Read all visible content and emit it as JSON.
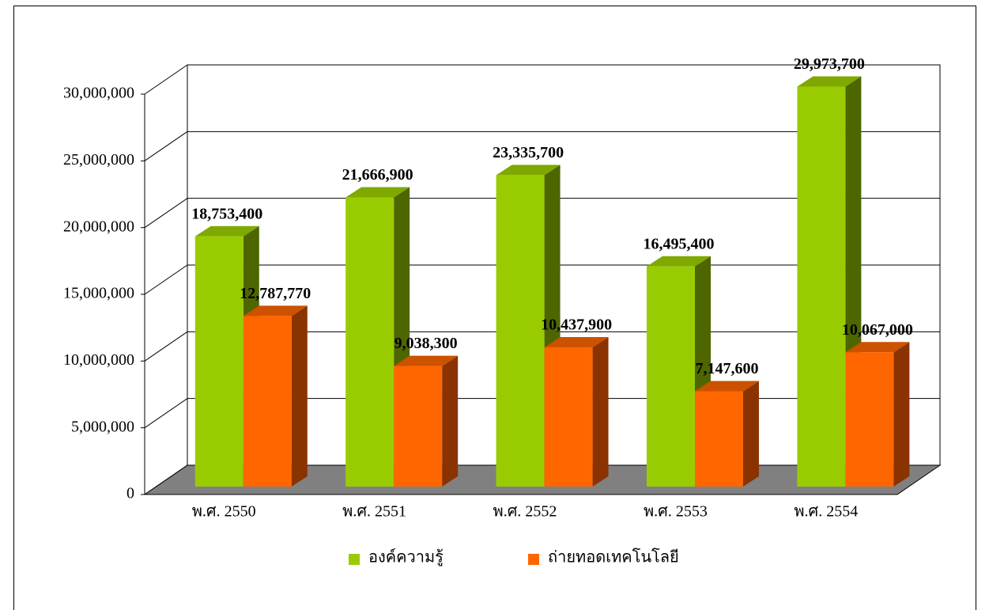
{
  "chart_data": {
    "type": "bar3d",
    "categories": [
      "พ.ศ. 2550",
      "พ.ศ. 2551",
      "พ.ศ. 2552",
      "พ.ศ. 2553",
      "พ.ศ. 2554"
    ],
    "series": [
      {
        "name": "องค์ความรู้",
        "color": "#99cc00",
        "side_color": "#4d6600",
        "top_color": "#7fa800",
        "values": [
          18753400,
          21666900,
          23335700,
          16495400,
          29973700
        ],
        "value_labels": [
          "18,753,400",
          "21,666,900",
          "23,335,700",
          "16,495,400",
          "29,973,700"
        ]
      },
      {
        "name": "ถ่ายทอดเทคโนโลยี",
        "color": "#ff6600",
        "side_color": "#8b3300",
        "top_color": "#cc5200",
        "values": [
          12787770,
          9038300,
          10437900,
          7147600,
          10067000
        ],
        "value_labels": [
          "12,787,770",
          "9,038,300",
          "10,437,900",
          "7,147,600",
          "10,067,000"
        ]
      }
    ],
    "ylim": [
      0,
      30000000
    ],
    "yticks": [
      0,
      {
        "value": 5000000,
        "label": "5,000,000"
      },
      {
        "value": 10000000,
        "label": "10,000,000"
      },
      {
        "value": 15000000,
        "label": "15,000,000"
      },
      {
        "value": 20000000,
        "label": "20,000,000"
      },
      {
        "value": 25000000,
        "label": "25,000,000"
      },
      {
        "value": 30000000,
        "label": "30,000,000"
      }
    ],
    "grid": true,
    "legend": "bottom",
    "floor_color": "#808080"
  }
}
